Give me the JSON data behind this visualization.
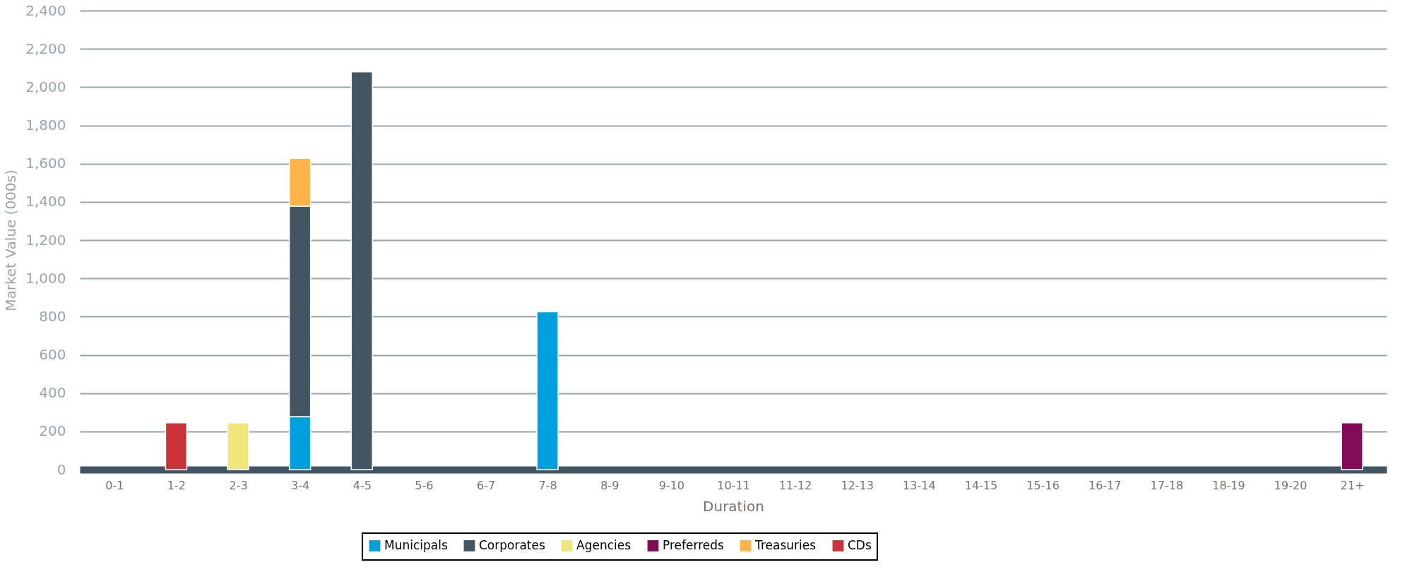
{
  "chart_data": {
    "type": "bar",
    "stacked": true,
    "xlabel": "Duration",
    "ylabel": "Market Value (000s)",
    "categories": [
      "0-1",
      "1-2",
      "2-3",
      "3-4",
      "4-5",
      "5-6",
      "6-7",
      "7-8",
      "8-9",
      "9-10",
      "10-11",
      "11-12",
      "12-13",
      "13-14",
      "14-15",
      "15-16",
      "16-17",
      "17-18",
      "18-19",
      "19-20",
      "21+"
    ],
    "series": [
      {
        "name": "Municipals",
        "color": "#00a0df",
        "values": [
          null,
          null,
          null,
          277,
          null,
          null,
          null,
          825,
          null,
          null,
          null,
          null,
          null,
          null,
          null,
          null,
          null,
          null,
          null,
          null,
          null
        ]
      },
      {
        "name": "Corporates",
        "color": "#425563",
        "values": [
          null,
          null,
          null,
          1100,
          2080,
          null,
          null,
          null,
          null,
          null,
          null,
          null,
          null,
          null,
          null,
          null,
          null,
          null,
          null,
          null,
          null
        ]
      },
      {
        "name": "Agencies",
        "color": "#f0e67a",
        "values": [
          null,
          null,
          245,
          null,
          null,
          null,
          null,
          null,
          null,
          null,
          null,
          null,
          null,
          null,
          null,
          null,
          null,
          null,
          null,
          null,
          null
        ]
      },
      {
        "name": "Preferreds",
        "color": "#840b55",
        "values": [
          null,
          null,
          null,
          null,
          null,
          null,
          null,
          null,
          null,
          null,
          null,
          null,
          null,
          null,
          null,
          null,
          null,
          null,
          null,
          null,
          245
        ]
      },
      {
        "name": "Treasuries",
        "color": "#ffb349",
        "values": [
          null,
          null,
          null,
          250,
          null,
          null,
          null,
          null,
          null,
          null,
          null,
          null,
          null,
          null,
          null,
          null,
          null,
          null,
          null,
          null,
          null
        ]
      },
      {
        "name": "CDs",
        "color": "#cc3339",
        "values": [
          null,
          245,
          null,
          null,
          null,
          null,
          null,
          null,
          null,
          null,
          null,
          null,
          null,
          null,
          null,
          null,
          null,
          null,
          null,
          null,
          null
        ]
      }
    ],
    "ylim": [
      0,
      2400
    ],
    "yticks": [
      0,
      200,
      400,
      600,
      800,
      {
        "value": 1000,
        "label": "1,000"
      },
      {
        "value": 1200,
        "label": "1,200"
      },
      {
        "value": 1400,
        "label": "1,400"
      },
      {
        "value": 1600,
        "label": "1,600"
      },
      {
        "value": 1800,
        "label": "1,800"
      },
      {
        "value": 2000,
        "label": "2,000"
      },
      {
        "value": 2200,
        "label": "2,200"
      },
      {
        "value": 2400,
        "label": "2,400"
      }
    ],
    "grid": "y",
    "legend": "bottom"
  }
}
